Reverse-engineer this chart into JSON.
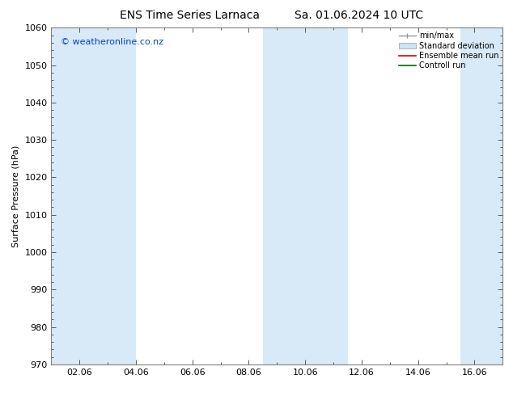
{
  "title_left": "ENS Time Series Larnaca",
  "title_right": "Sa. 01.06.2024 10 UTC",
  "ylabel": "Surface Pressure (hPa)",
  "ylim": [
    970,
    1060
  ],
  "yticks": [
    970,
    980,
    990,
    1000,
    1010,
    1020,
    1030,
    1040,
    1050,
    1060
  ],
  "xtick_labels": [
    "02.06",
    "04.06",
    "06.06",
    "08.06",
    "10.06",
    "12.06",
    "14.06",
    "16.06"
  ],
  "xtick_positions": [
    1,
    3,
    5,
    7,
    9,
    11,
    13,
    15
  ],
  "xlim": [
    0,
    16
  ],
  "shaded_bands": [
    {
      "xstart": 0.0,
      "xend": 1.5
    },
    {
      "xstart": 1.5,
      "xend": 3.0
    },
    {
      "xstart": 7.5,
      "xend": 9.0
    },
    {
      "xstart": 9.0,
      "xend": 10.5
    },
    {
      "xstart": 14.5,
      "xend": 16.0
    }
  ],
  "band_color": "#d8eaf8",
  "watermark": "© weatheronline.co.nz",
  "watermark_color": "#0044cc",
  "legend_labels": [
    "min/max",
    "Standard deviation",
    "Ensemble mean run",
    "Controll run"
  ],
  "bg_color": "#ffffff",
  "spine_color": "#808080",
  "tick_color": "#404040",
  "title_fontsize": 10,
  "label_fontsize": 8,
  "tick_fontsize": 8,
  "watermark_fontsize": 8
}
